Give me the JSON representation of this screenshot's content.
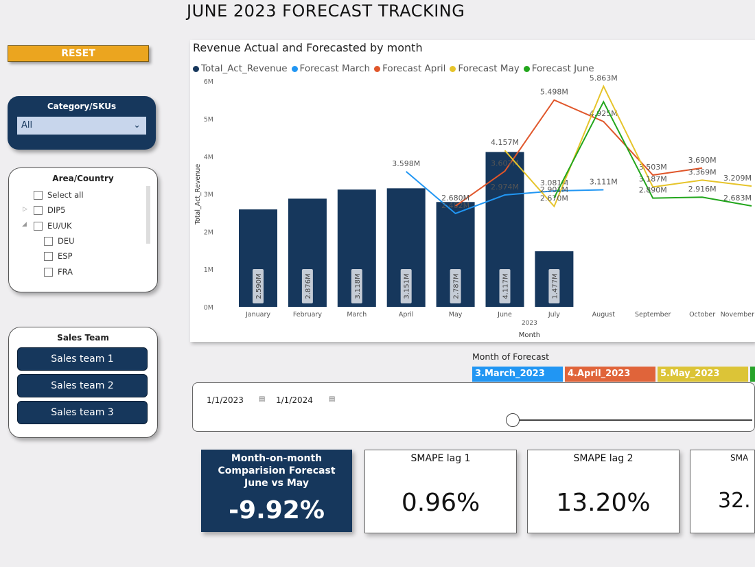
{
  "title": "JUNE 2023 FORECAST TRACKING",
  "reset_label": "RESET",
  "category": {
    "label": "Category/SKUs",
    "value": "All"
  },
  "area": {
    "label": "Area/Country",
    "items": [
      "Select all",
      "DIP5",
      "EU/UK",
      "DEU",
      "ESP",
      "FRA"
    ]
  },
  "sales_team": {
    "label": "Sales Team",
    "items": [
      "Sales team 1",
      "Sales team 2",
      "Sales team 3"
    ]
  },
  "month_of_forecast": {
    "label": "Month of Forecast",
    "items": [
      {
        "label": "3.March_2023",
        "color": "#2196f3"
      },
      {
        "label": "4.April_2023",
        "color": "#e0643a"
      },
      {
        "label": "5.May_2023",
        "color": "#dcc437"
      }
    ],
    "partial_color": "#27a32a"
  },
  "date_range": {
    "start": "1/1/2023",
    "end": "1/1/2024"
  },
  "kpis": {
    "mom": {
      "title": "Month-on-month Comparision Forecast June vs May",
      "value": "-9.92%"
    },
    "lag1": {
      "title": "SMAPE lag 1",
      "value": "0.96%"
    },
    "lag2": {
      "title": "SMAPE lag 2",
      "value": "13.20%"
    },
    "lag3": {
      "title": "SMA",
      "value": "32."
    }
  },
  "chart_data": {
    "type": "bar+line",
    "title": "Revenue Actual and Forecasted by month",
    "xlabel": "Month",
    "xsub": "2023",
    "ylabel": "Total_Act_Revenue",
    "ylim": [
      0,
      6
    ],
    "yticks": [
      "0M",
      "1M",
      "2M",
      "3M",
      "4M",
      "5M",
      "6M"
    ],
    "categories": [
      "January",
      "February",
      "March",
      "April",
      "May",
      "June",
      "July",
      "August",
      "September",
      "October",
      "November"
    ],
    "bars": {
      "name": "Total_Act_Revenue",
      "color": "#16375c",
      "values": [
        2.59,
        2.876,
        3.118,
        3.151,
        2.787,
        4.117,
        1.477,
        null,
        null,
        null,
        null
      ],
      "labels": [
        "2.590M",
        "2.876M",
        "3.118M",
        "3.151M",
        "2.787M",
        "4.117M",
        "1.477M",
        "",
        "",
        "",
        ""
      ]
    },
    "series": [
      {
        "name": "Forecast March",
        "color": "#2196f3",
        "values": [
          null,
          null,
          null,
          3.598,
          2.482,
          2.974,
          3.081,
          3.111,
          null,
          null,
          null
        ],
        "labels": [
          "",
          "",
          "",
          "3.598M",
          "2.482M",
          "2.974M",
          "3.081M",
          "3.111M",
          "",
          "",
          ""
        ]
      },
      {
        "name": "Forecast April",
        "color": "#e0562a",
        "values": [
          null,
          null,
          null,
          null,
          2.68,
          3.607,
          5.498,
          4.925,
          3.503,
          3.69,
          null
        ],
        "labels": [
          "",
          "",
          "",
          "",
          "2.680M",
          "3.607M",
          "5.498M",
          "4.925M",
          "3.503M",
          "3.690M",
          ""
        ]
      },
      {
        "name": "Forecast May",
        "color": "#e6c42a",
        "values": [
          null,
          null,
          null,
          null,
          null,
          4.157,
          2.67,
          5.863,
          3.187,
          3.369,
          3.209
        ],
        "labels": [
          "",
          "",
          "",
          "",
          "",
          "4.157M",
          "2.670M",
          "5.863M",
          "3.187M",
          "3.369M",
          "3.209M"
        ]
      },
      {
        "name": "Forecast June",
        "color": "#22a61c",
        "values": [
          null,
          null,
          null,
          null,
          null,
          null,
          2.901,
          5.45,
          2.89,
          2.916,
          2.683
        ],
        "labels": [
          "",
          "",
          "",
          "",
          "",
          "",
          "2.901M",
          "",
          "2.890M",
          "2.916M",
          "2.683M"
        ]
      }
    ]
  }
}
